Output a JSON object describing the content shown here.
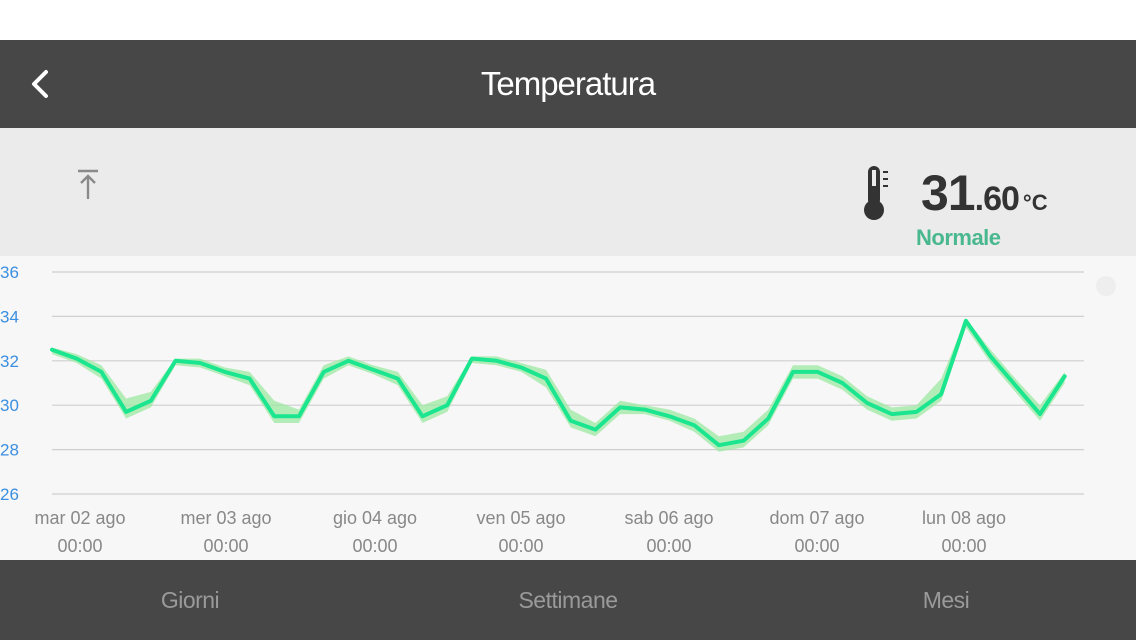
{
  "header": {
    "title": "Temperatura",
    "back_icon": "chevron-left-icon"
  },
  "current": {
    "integer": "31",
    "decimal": ".60",
    "unit": "°C",
    "status": "Normale",
    "status_color": "#4ab88f",
    "icon": "thermometer-icon"
  },
  "toolbar": {
    "share_icon": "upload-icon"
  },
  "chart_data": {
    "type": "line",
    "title": "",
    "xlabel": "",
    "ylabel": "",
    "ylim": [
      26,
      36
    ],
    "yticks": [
      36,
      34,
      32,
      30,
      28,
      26
    ],
    "grid": true,
    "x_tick_labels": [
      {
        "date": "mar 02 ago",
        "time": "00:00"
      },
      {
        "date": "mer 03 ago",
        "time": "00:00"
      },
      {
        "date": "gio 04 ago",
        "time": "00:00"
      },
      {
        "date": "ven 05 ago",
        "time": "00:00"
      },
      {
        "date": "sab 06 ago",
        "time": "00:00"
      },
      {
        "date": "dom 07 ago",
        "time": "00:00"
      },
      {
        "date": "lun 08 ago",
        "time": "00:00"
      }
    ],
    "line_color": "#1be58f",
    "band_color": "#9ee8a3",
    "series": [
      {
        "x": [
          "02/08 00:00",
          "02/08 04:00",
          "02/08 08:00",
          "02/08 12:00",
          "02/08 16:00",
          "02/08 20:00",
          "03/08 00:00",
          "03/08 04:00",
          "03/08 08:00",
          "03/08 12:00",
          "03/08 16:00",
          "03/08 20:00",
          "04/08 00:00",
          "04/08 04:00",
          "04/08 08:00",
          "04/08 12:00",
          "04/08 16:00",
          "04/08 20:00",
          "05/08 00:00",
          "05/08 04:00",
          "05/08 08:00",
          "05/08 12:00",
          "05/08 16:00",
          "05/08 20:00",
          "06/08 00:00",
          "06/08 04:00",
          "06/08 08:00",
          "06/08 12:00",
          "06/08 16:00",
          "06/08 20:00",
          "07/08 00:00",
          "07/08 04:00",
          "07/08 08:00",
          "07/08 12:00",
          "07/08 16:00",
          "07/08 20:00",
          "08/08 00:00",
          "08/08 04:00",
          "08/08 08:00",
          "08/08 12:00",
          "08/08 16:00",
          "08/08 20:00"
        ],
        "values": [
          32.5,
          32.1,
          31.5,
          29.7,
          30.2,
          32.0,
          31.9,
          31.5,
          31.2,
          29.5,
          29.5,
          31.5,
          32.0,
          31.6,
          31.2,
          29.5,
          30.0,
          32.1,
          32.0,
          31.7,
          31.2,
          29.3,
          28.9,
          29.9,
          29.8,
          29.5,
          29.1,
          28.2,
          28.4,
          29.4,
          31.5,
          31.5,
          31.0,
          30.1,
          29.6,
          29.7,
          30.5,
          33.8,
          32.2,
          30.9,
          29.6,
          31.3
        ],
        "min": [
          32.3,
          31.9,
          31.2,
          29.4,
          29.9,
          31.8,
          31.7,
          31.3,
          30.9,
          29.2,
          29.2,
          31.2,
          31.8,
          31.4,
          30.9,
          29.2,
          29.7,
          31.9,
          31.8,
          31.5,
          30.8,
          29.0,
          28.6,
          29.6,
          29.6,
          29.3,
          28.8,
          27.9,
          28.1,
          29.1,
          31.2,
          31.2,
          30.7,
          29.8,
          29.3,
          29.4,
          30.2,
          33.5,
          31.9,
          30.6,
          29.3,
          31.0
        ],
        "max": [
          32.6,
          32.3,
          31.8,
          30.3,
          30.6,
          32.1,
          32.1,
          31.7,
          31.5,
          30.2,
          29.8,
          31.8,
          32.2,
          31.8,
          31.5,
          30.0,
          30.4,
          32.2,
          32.2,
          31.9,
          31.6,
          29.8,
          29.2,
          30.2,
          30.0,
          29.8,
          29.4,
          28.6,
          28.8,
          29.8,
          31.8,
          31.8,
          31.3,
          30.4,
          29.9,
          30.0,
          31.2,
          33.9,
          32.5,
          31.2,
          30.0,
          31.5
        ]
      }
    ]
  },
  "tabs": [
    {
      "label": "Giorni"
    },
    {
      "label": "Settimane"
    },
    {
      "label": "Mesi"
    }
  ]
}
